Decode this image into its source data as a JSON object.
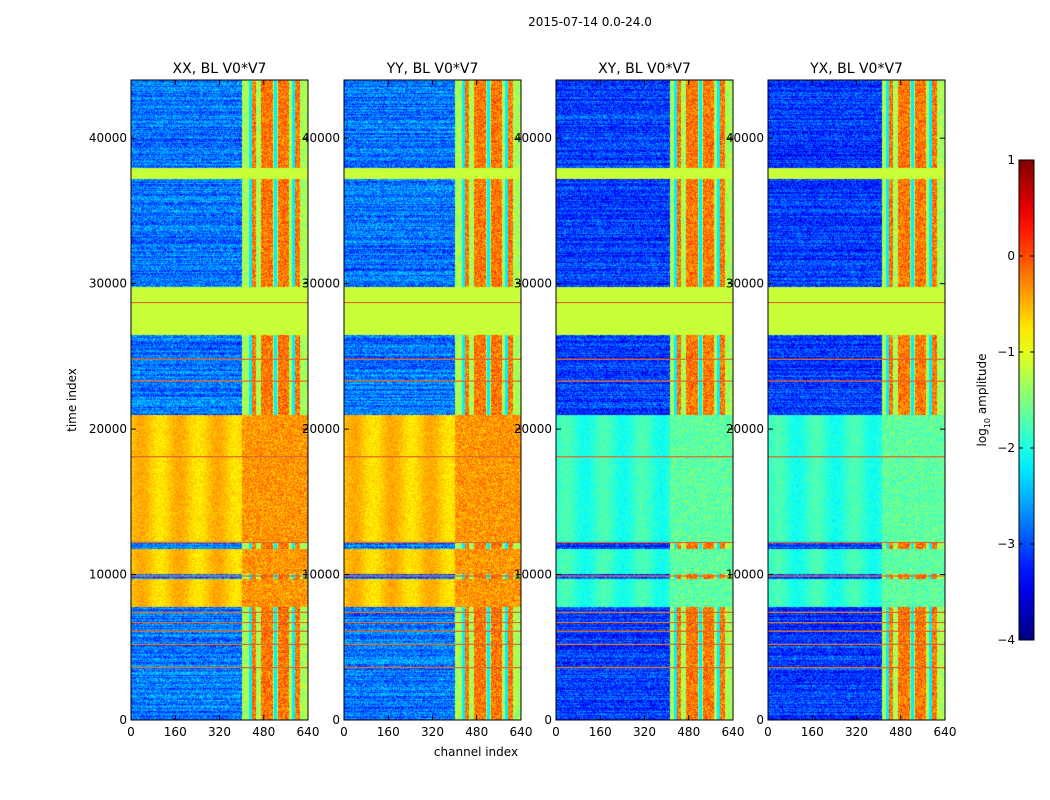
{
  "chart_data": {
    "type": "heatmap",
    "suptitle": "2015-07-14 0.0-24.0",
    "xlabel": "channel index",
    "ylabel": "time index",
    "xlim": [
      0,
      640
    ],
    "ylim": [
      0,
      44000
    ],
    "xticks": [
      0,
      160,
      320,
      480,
      640
    ],
    "xtick_labels": [
      "0",
      "160",
      "320",
      "480",
      "640"
    ],
    "yticks": [
      0,
      10000,
      20000,
      30000,
      40000
    ],
    "ytick_labels": [
      "0",
      "10000",
      "20000",
      "30000",
      "40000"
    ],
    "colormap": "jet",
    "colorbar": {
      "label": "log10 amplitude",
      "label_main": "log",
      "label_sub": "10",
      "label_rest": " amplitude",
      "range": [
        -4,
        1
      ],
      "ticks": [
        1,
        0,
        -1,
        -2,
        -3,
        -4
      ],
      "tick_labels": [
        "1",
        "0",
        "−1",
        "−2",
        "−3",
        "−4"
      ]
    },
    "panels": [
      {
        "title": "XX, BL V0*V7",
        "baseline_level": -2.8,
        "yellow_level": -0.6,
        "rfi_start_channel": 400
      },
      {
        "title": "YY, BL V0*V7",
        "baseline_level": -2.8,
        "yellow_level": -0.6,
        "rfi_start_channel": 400
      },
      {
        "title": "XY, BL V0*V7",
        "baseline_level": -3.1,
        "yellow_level": -1.9,
        "rfi_start_channel": 410
      },
      {
        "title": "YX, BL V0*V7",
        "baseline_level": -3.1,
        "yellow_level": -1.9,
        "rfi_start_channel": 410
      }
    ],
    "time_bands": [
      {
        "from": 21000,
        "to": 44000,
        "state": "noise"
      },
      {
        "from": 37200,
        "to": 38000,
        "state": "flagged",
        "level": -1.15
      },
      {
        "from": 26500,
        "to": 29800,
        "state": "flagged",
        "level": -1.15
      },
      {
        "from": 7800,
        "to": 21000,
        "state": "strong"
      },
      {
        "from": 11800,
        "to": 12300,
        "state": "noise"
      },
      {
        "from": 9700,
        "to": 10100,
        "state": "noise"
      },
      {
        "from": 0,
        "to": 7800,
        "state": "noise"
      }
    ],
    "flag_lines": [
      3600,
      5200,
      6100,
      6700,
      7400,
      9900,
      12200,
      18100,
      23300,
      24800,
      28700
    ],
    "rfi_columns": [
      440,
      480,
      500,
      540,
      560,
      600
    ]
  }
}
